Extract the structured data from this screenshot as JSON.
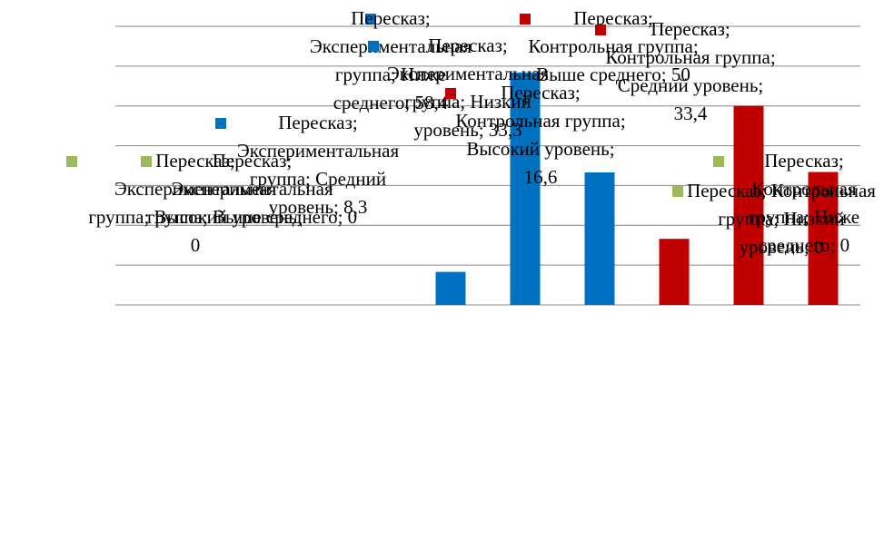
{
  "chart_data": {
    "type": "bar",
    "categories": [
      "Высокий уровень",
      "Выше среднего",
      "Средний уровень",
      "Ниже среднего",
      "Низкий уровень"
    ],
    "series": [
      {
        "name": "Экспериментальная группа",
        "color": "#0070C0"
      },
      {
        "name": "Контрольная группа",
        "color": "#C00000"
      }
    ],
    "points": [
      {
        "series": "Экспериментальная группа",
        "category": "Высокий уровень",
        "value": 0,
        "color": "#9BBB59",
        "label": "Пересказ; Экспериментальная группа; Высокий уровень; 0"
      },
      {
        "series": "Экспериментальная группа",
        "category": "Выше среднего",
        "value": 0,
        "color": "#9BBB59",
        "label": "Пересказ; Экспериментальная группа; Выше среднего; 0"
      },
      {
        "series": "Экспериментальная группа",
        "category": "Средний уровень",
        "value": 8.3,
        "color": "#0070C0",
        "label": "Пересказ; Экспериментальная группа; Средний уровень; 8,3"
      },
      {
        "series": "Экспериментальная группа",
        "category": "Ниже среднего",
        "value": 58.4,
        "color": "#0070C0",
        "label": "Пересказ; Экспериментальная группа; Ниже среднего; 58,4"
      },
      {
        "series": "Экспериментальная группа",
        "category": "Низкий уровень",
        "value": 33.3,
        "color": "#0070C0",
        "label": "Пересказ; Экспериментальная группа; Низкий уровень; 33,3"
      },
      {
        "series": "Контрольная группа",
        "category": "Высокий уровень",
        "value": 16.6,
        "color": "#C00000",
        "label": "Пересказ; Контрольная группа; Высокий уровень; 16,6"
      },
      {
        "series": "Контрольная группа",
        "category": "Выше среднего",
        "value": 50,
        "color": "#C00000",
        "label": "Пересказ; Контрольная группа; Выше среднего; 50"
      },
      {
        "series": "Контрольная группа",
        "category": "Средний уровень",
        "value": 33.4,
        "color": "#C00000",
        "label": "Пересказ; Контрольная группа; Средний уровень; 33,4"
      },
      {
        "series": "Контрольная группа",
        "category": "Ниже среднего",
        "value": 0,
        "color": "#9BBB59",
        "label": "Пересказ; Контрольная группа; Ниже среднего; 0"
      },
      {
        "series": "Контрольная группа",
        "category": "Низкий уровень",
        "value": 0,
        "color": "#9BBB59",
        "label": "Пересказ; Контрольная группа; Низкий уровень; 0"
      }
    ],
    "ylim": [
      0,
      70
    ],
    "grid": true,
    "axis_labels_visible": false,
    "legend": "none"
  }
}
